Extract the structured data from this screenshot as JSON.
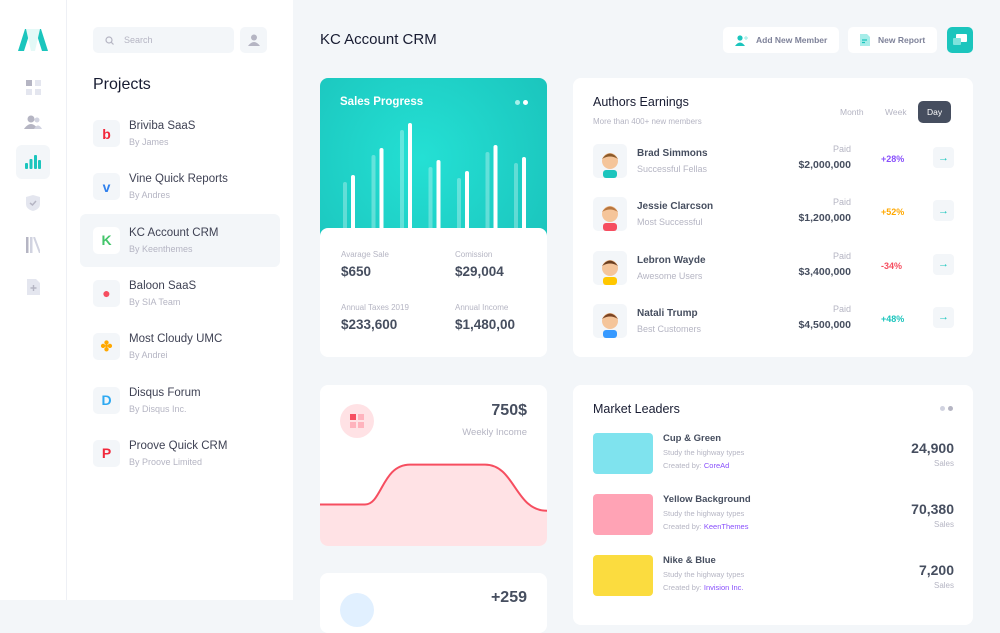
{
  "colors": {
    "accent": "#1bc5bd",
    "positive": "#1bc5bd",
    "warning": "#ffa800",
    "danger": "#f64e60",
    "purple": "#8950fc",
    "dark": "#464e5f"
  },
  "rail": {
    "items": [
      {
        "icon": "dashboard-icon"
      },
      {
        "icon": "users-icon"
      },
      {
        "icon": "chart-icon",
        "active": true
      },
      {
        "icon": "shield-check-icon"
      },
      {
        "icon": "library-icon"
      },
      {
        "icon": "file-plus-icon"
      }
    ]
  },
  "panel": {
    "search_placeholder": "Search",
    "title": "Projects",
    "projects": [
      {
        "name": "Briviba SaaS",
        "by": "By James",
        "glyph": "b",
        "color": "#f1283b"
      },
      {
        "name": "Vine Quick Reports",
        "by": "By Andres",
        "glyph": "v",
        "color": "#2f80ed"
      },
      {
        "name": "KC Account CRM",
        "by": "By Keenthemes",
        "glyph": "K",
        "color": "#44c56b",
        "active": true
      },
      {
        "name": "Baloon SaaS",
        "by": "By SIA Team",
        "glyph": "●",
        "color": "#f64e60"
      },
      {
        "name": "Most Cloudy UMC",
        "by": "By Andrei",
        "glyph": "✤",
        "color": "#ffa800"
      },
      {
        "name": "Disqus Forum",
        "by": "By Disqus Inc.",
        "glyph": "D",
        "color": "#2ea9f2"
      },
      {
        "name": "Proove Quick CRM",
        "by": "By Proove Limited",
        "glyph": "P",
        "color": "#f1283b"
      }
    ]
  },
  "header": {
    "title": "KC Account CRM",
    "add_member": "Add New Member",
    "new_report": "New Report"
  },
  "sales": {
    "title": "Sales Progress",
    "stats": [
      {
        "label": "Avarage Sale",
        "value": "$650"
      },
      {
        "label": "Comission",
        "value": "$29,004"
      },
      {
        "label": "Annual Taxes 2019",
        "value": "$233,600"
      },
      {
        "label": "Annual Income",
        "value": "$1,480,00"
      }
    ]
  },
  "weekly": {
    "value": "750$",
    "label": "Weekly Income"
  },
  "third": {
    "value": "+259"
  },
  "chart_data": [
    {
      "type": "bar",
      "series": [
        {
          "values": [
            46,
            73,
            98,
            61,
            50,
            76,
            65
          ]
        },
        {
          "values": [
            53,
            80,
            105,
            68,
            57,
            83,
            71
          ]
        }
      ]
    },
    {
      "type": "area",
      "values": [
        30,
        30,
        68,
        68,
        68,
        68,
        24
      ]
    }
  ],
  "authors": {
    "title": "Authors Earnings",
    "subtitle": "More than 400+ new members",
    "tabs": [
      {
        "label": "Month"
      },
      {
        "label": "Week"
      },
      {
        "label": "Day",
        "active": true
      }
    ],
    "rows": [
      {
        "name": "Brad Simmons",
        "desc": "Successful Fellas",
        "paid": "Paid",
        "amount": "$2,000,000",
        "change": "+28%",
        "color": "#8950fc",
        "shirt": "#1bc5bd",
        "hair": "#8b5a2b"
      },
      {
        "name": "Jessie Clarcson",
        "desc": "Most Successful",
        "paid": "Paid",
        "amount": "$1,200,000",
        "change": "+52%",
        "color": "#ffa800",
        "shirt": "#f64e60",
        "hair": "#b8763e"
      },
      {
        "name": "Lebron Wayde",
        "desc": "Awesome Users",
        "paid": "Paid",
        "amount": "$3,400,000",
        "change": "-34%",
        "color": "#f64e60",
        "shirt": "#ffc700",
        "hair": "#6b3e1f"
      },
      {
        "name": "Natali Trump",
        "desc": "Best Customers",
        "paid": "Paid",
        "amount": "$4,500,000",
        "change": "+48%",
        "color": "#1bc5bd",
        "shirt": "#3699ff",
        "hair": "#7a4424"
      }
    ]
  },
  "market": {
    "title": "Market Leaders",
    "rows": [
      {
        "name": "Cup & Green",
        "desc": "Study the highway types",
        "by_label": "Created by:",
        "by": "CoreAd",
        "value": "24,900",
        "unit": "Sales",
        "thumb": "#7fe3ee"
      },
      {
        "name": "Yellow Background",
        "desc": "Study the highway types",
        "by_label": "Created by:",
        "by": "KeenThemes",
        "value": "70,380",
        "unit": "Sales",
        "thumb": "#ffa3b5"
      },
      {
        "name": "Nike & Blue",
        "desc": "Study the highway types",
        "by_label": "Created by:",
        "by": "Invision Inc.",
        "value": "7,200",
        "unit": "Sales",
        "thumb": "#fbdc3f"
      }
    ]
  }
}
